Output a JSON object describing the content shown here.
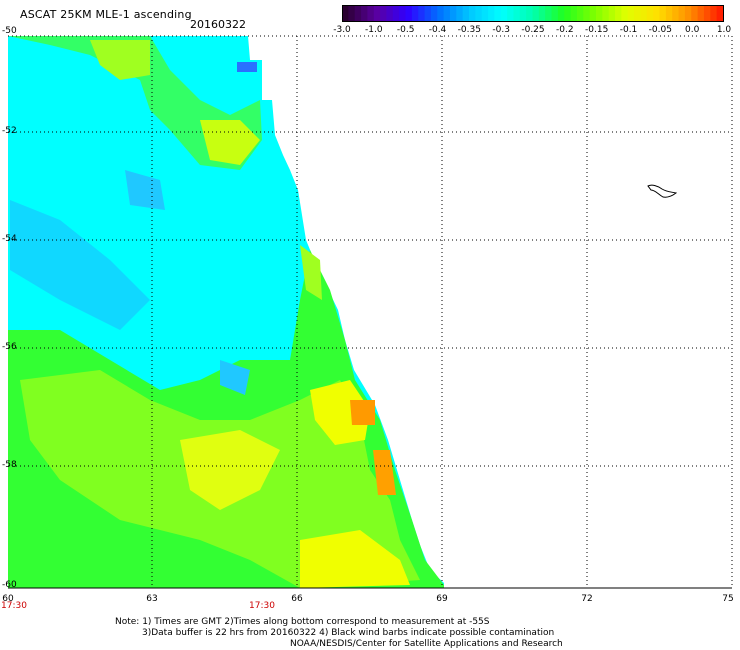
{
  "header": {
    "title": "ASCAT 25KM MLE-1 ascending",
    "date": "20160322"
  },
  "colorbar": {
    "labels": [
      "-3.0",
      "-1.0",
      "-0.5",
      "-0.4",
      "-0.35",
      "-0.3",
      "-0.25",
      "-0.2",
      "-0.15",
      "-0.1",
      "-0.05",
      "0.0",
      "1.0"
    ],
    "colors": [
      "#2a0030",
      "#5a00a0",
      "#3000ff",
      "#0070ff",
      "#00c8ff",
      "#00ffff",
      "#00ffb0",
      "#20ff20",
      "#80ff00",
      "#e0ff00",
      "#ffe000",
      "#ff9000",
      "#ff2000"
    ]
  },
  "map": {
    "lat_labels": [
      "-50",
      "-52",
      "-54",
      "-56",
      "-58",
      "-60"
    ],
    "lon_labels": [
      "60",
      "63",
      "66",
      "69",
      "72",
      "75"
    ],
    "time_labels": [
      "17:30",
      "17:30"
    ]
  },
  "notes": {
    "line1": "Note: 1) Times are GMT 2)Times along bottom correspond to measurement at -55S",
    "line2": "3)Data buffer is 22 hrs from 20160322 4) Black wind barbs indicate possible contamination",
    "line3": "NOAA/NESDIS/Center for Satellite Applications and Research"
  }
}
